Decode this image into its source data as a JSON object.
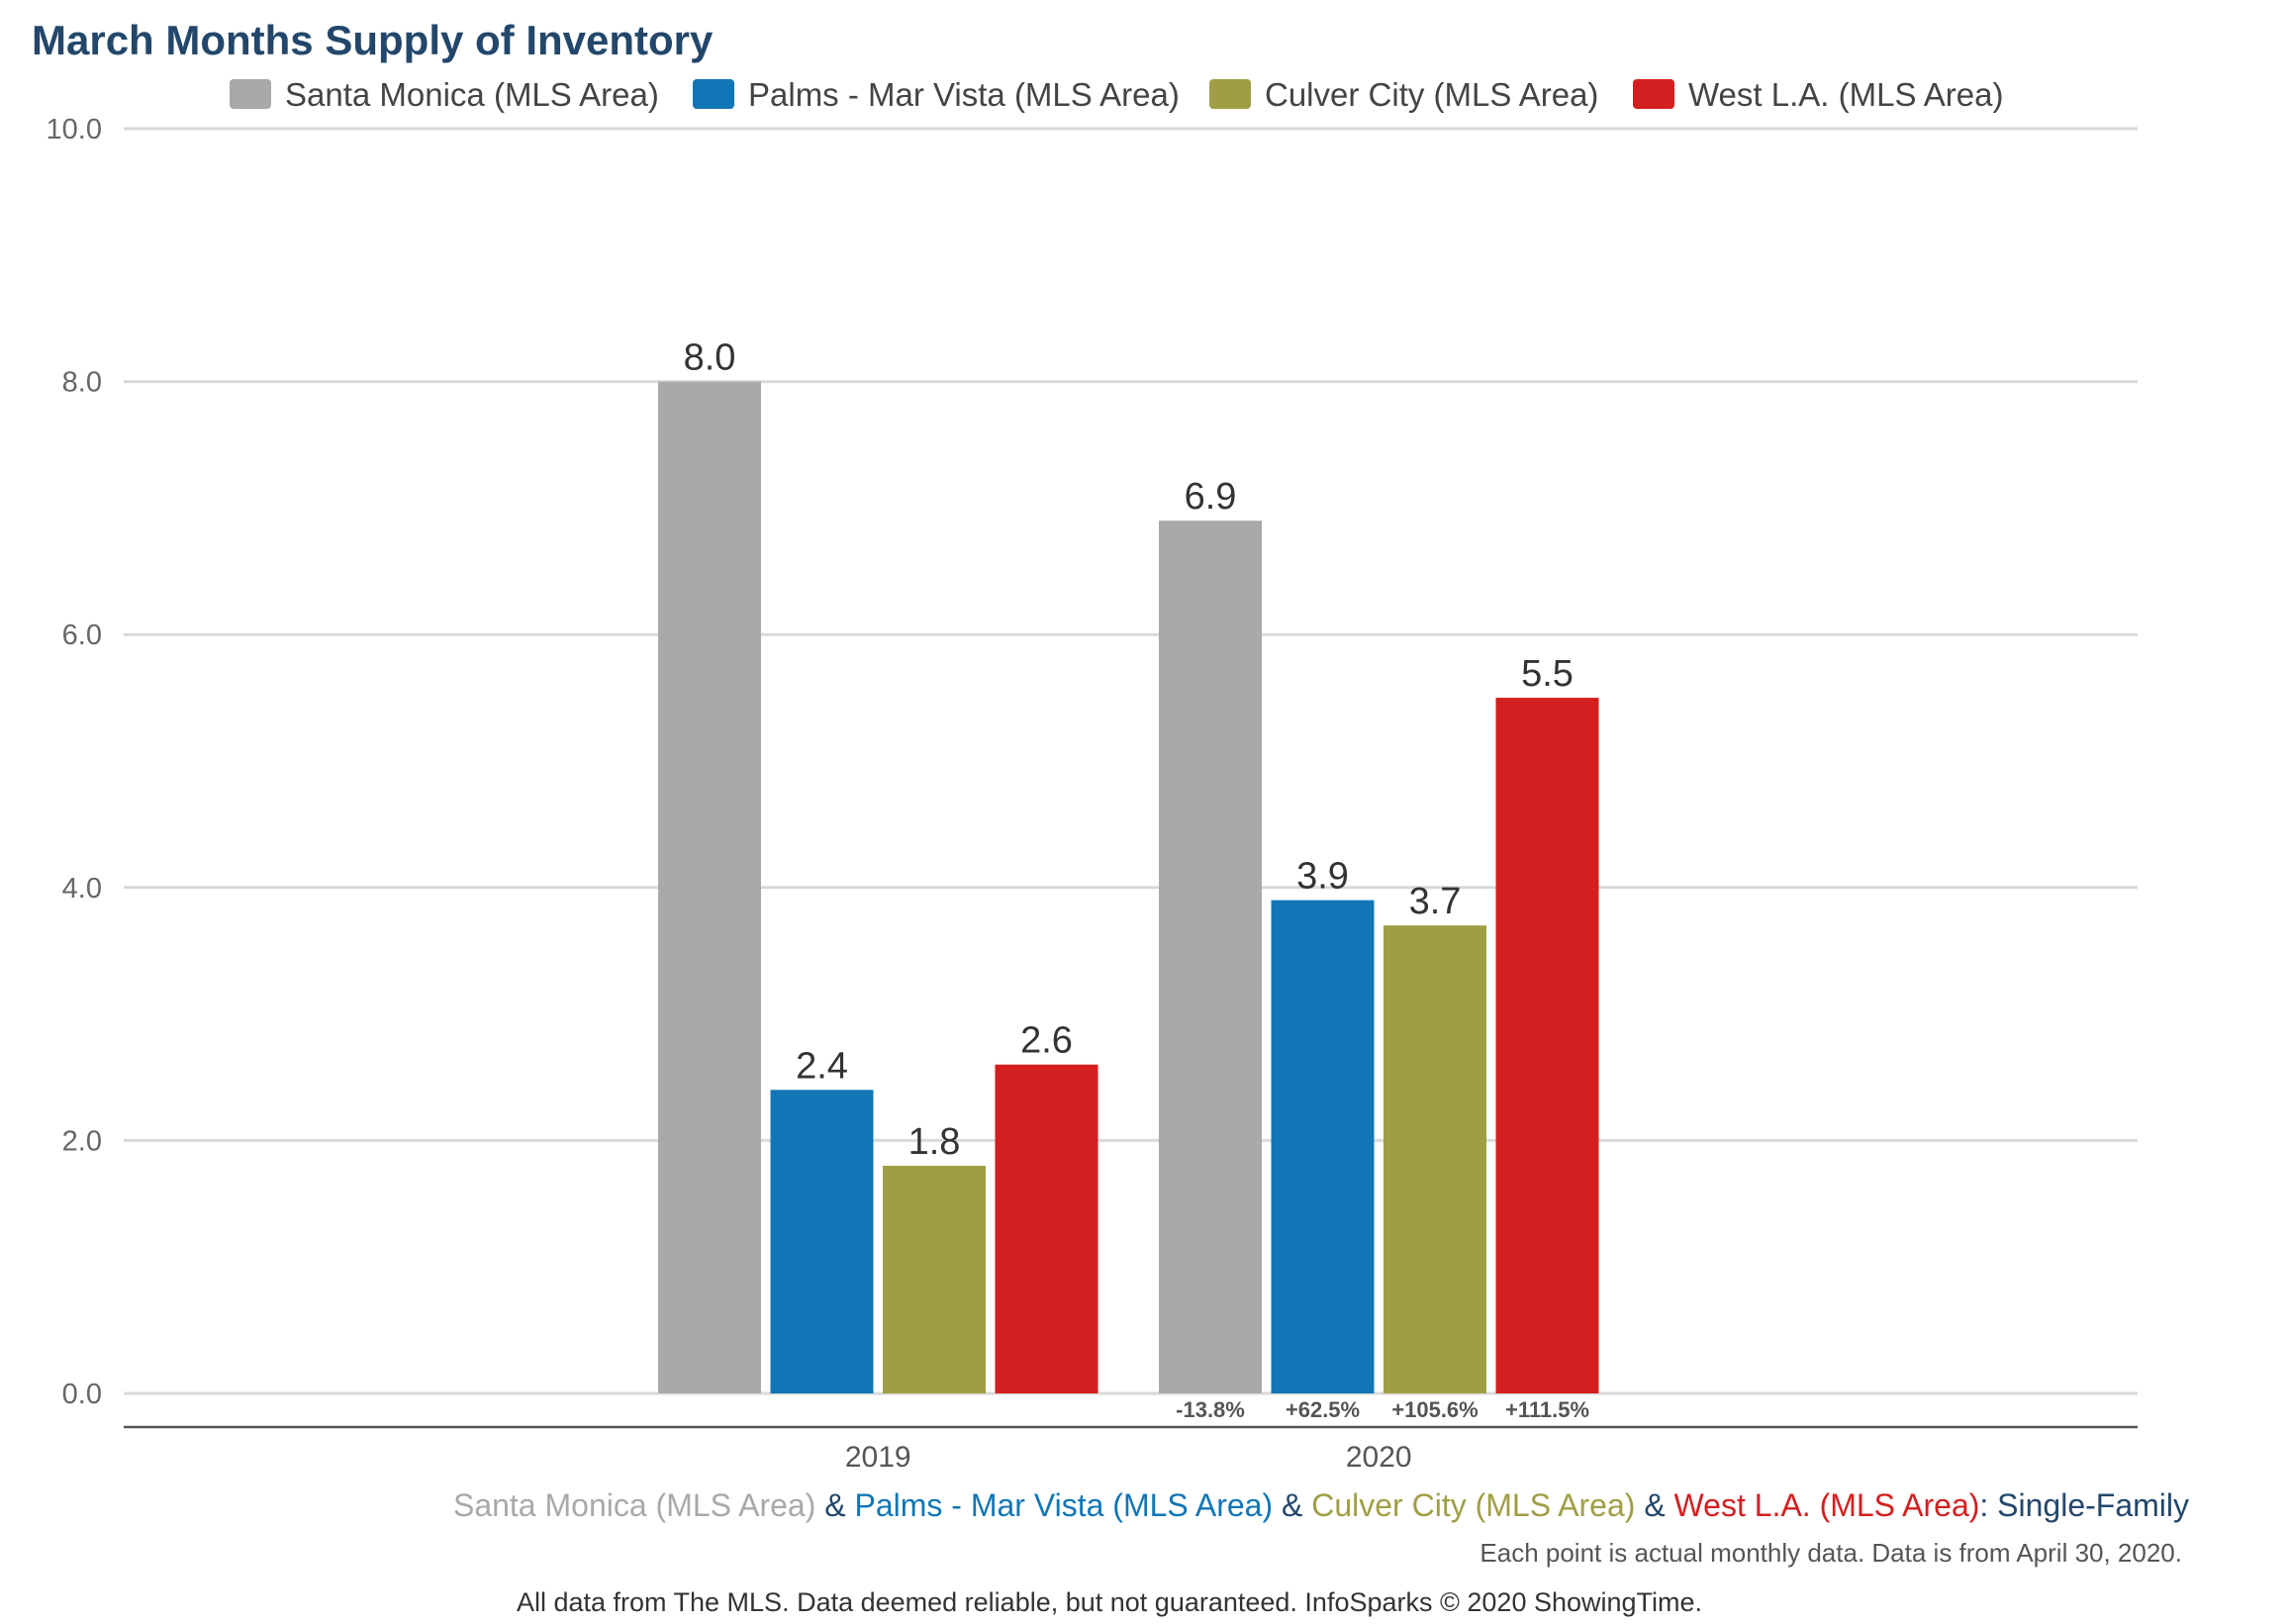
{
  "chart_data": {
    "type": "bar",
    "title": "March Months Supply of Inventory",
    "categories": [
      "2019",
      "2020"
    ],
    "series": [
      {
        "name": "Santa Monica (MLS Area)",
        "color": "#a9a9a9",
        "values": [
          8.0,
          6.9
        ]
      },
      {
        "name": "Palms - Mar Vista (MLS Area)",
        "color": "#1176b6",
        "values": [
          2.4,
          3.9
        ]
      },
      {
        "name": "Culver City (MLS Area)",
        "color": "#a09e44",
        "values": [
          1.8,
          3.7
        ]
      },
      {
        "name": "West L.A. (MLS Area)",
        "color": "#d31f1f",
        "values": [
          2.6,
          5.5
        ]
      }
    ],
    "value_labels": [
      [
        "8.0",
        "2.4",
        "1.8",
        "2.6"
      ],
      [
        "6.9",
        "3.9",
        "3.7",
        "5.5"
      ]
    ],
    "change_labels": [
      "-13.8%",
      "+62.5%",
      "+105.6%",
      "+111.5%"
    ],
    "ylim": [
      0,
      10
    ],
    "yticks": [
      "0.0",
      "2.0",
      "4.0",
      "6.0",
      "8.0",
      "10.0"
    ],
    "grid": true,
    "legend_position": "top"
  },
  "footer": {
    "subtitle_parts": [
      {
        "text": "Santa Monica (MLS Area)",
        "color": "#a9a9a9"
      },
      {
        "text": " & ",
        "color": "#23476b"
      },
      {
        "text": "Palms - Mar Vista (MLS Area)",
        "color": "#1176b6"
      },
      {
        "text": " & ",
        "color": "#23476b"
      },
      {
        "text": "Culver City (MLS Area)",
        "color": "#a09e44"
      },
      {
        "text": " & ",
        "color": "#23476b"
      },
      {
        "text": "West L.A. (MLS Area)",
        "color": "#d31f1f"
      },
      {
        "text": ": Single-Family",
        "color": "#23476b"
      }
    ],
    "note": "Each point is actual monthly data. Data is from April 30, 2020.",
    "credit": "All data from The MLS. Data deemed reliable, but not guaranteed. InfoSparks © 2020 ShowingTime."
  }
}
